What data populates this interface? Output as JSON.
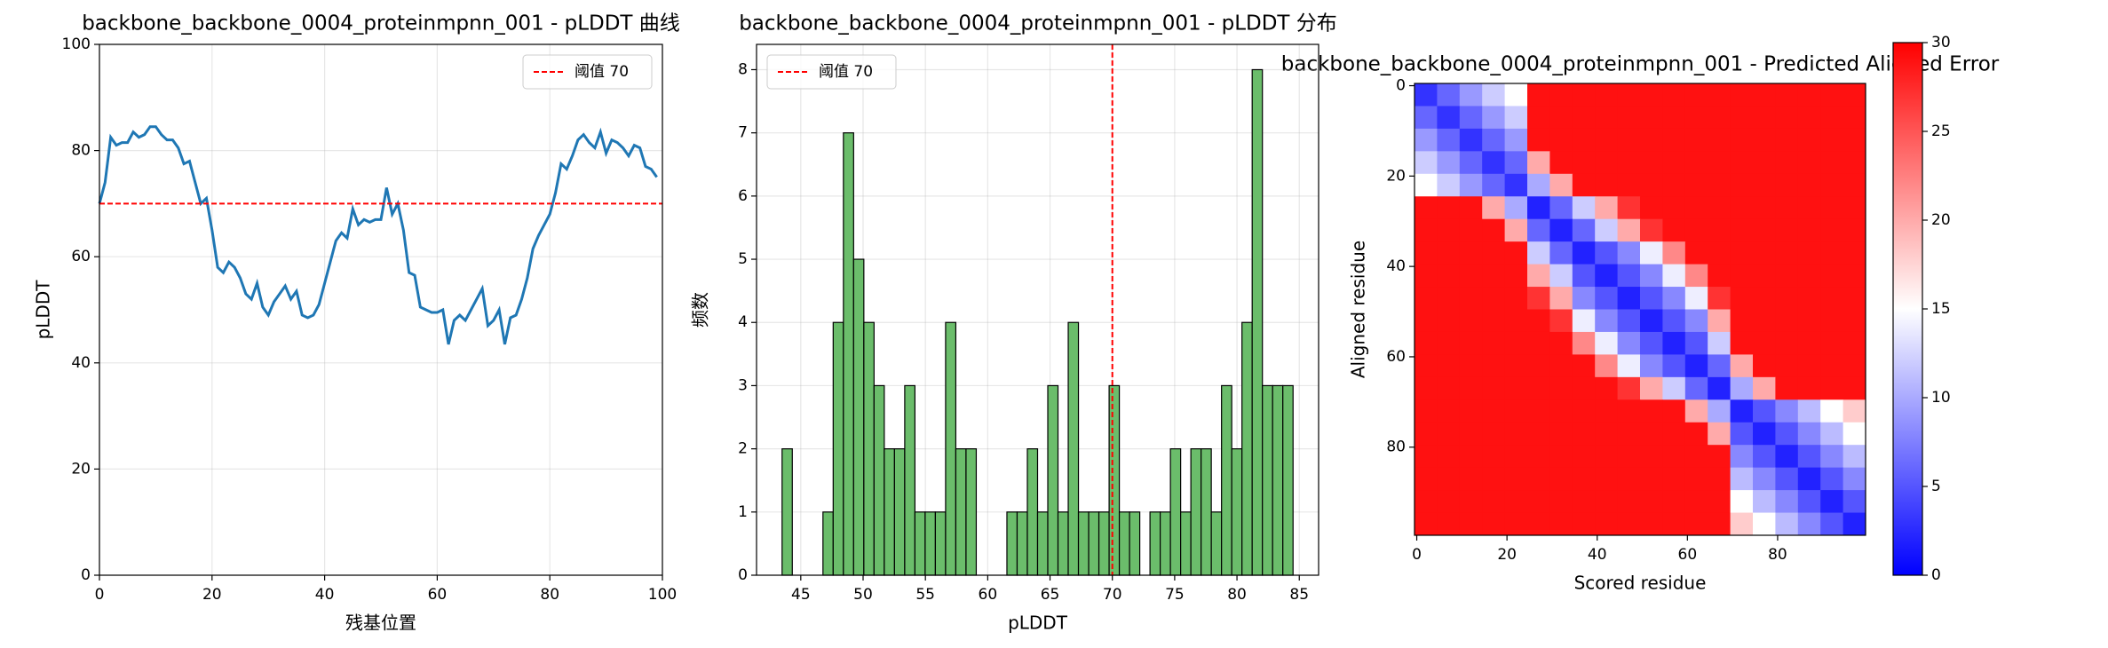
{
  "chart_data": [
    {
      "type": "line",
      "title": "backbone_backbone_0004_proteinmpnn_001 - pLDDT 曲线",
      "xlabel": "残基位置",
      "ylabel": "pLDDT",
      "x": [
        0,
        1,
        2,
        3,
        4,
        5,
        6,
        7,
        8,
        9,
        10,
        11,
        12,
        13,
        14,
        15,
        16,
        17,
        18,
        19,
        20,
        21,
        22,
        23,
        24,
        25,
        26,
        27,
        28,
        29,
        30,
        31,
        32,
        33,
        34,
        35,
        36,
        37,
        38,
        39,
        40,
        41,
        42,
        43,
        44,
        45,
        46,
        47,
        48,
        49,
        50,
        51,
        52,
        53,
        54,
        55,
        56,
        57,
        58,
        59,
        60,
        61,
        62,
        63,
        64,
        65,
        66,
        67,
        68,
        69,
        70,
        71,
        72,
        73,
        74,
        75,
        76,
        77,
        78,
        79,
        80,
        81,
        82,
        83,
        84,
        85,
        86,
        87,
        88,
        89,
        90,
        91,
        92,
        93,
        94,
        95,
        96,
        97,
        98,
        99
      ],
      "series": [
        {
          "name": "pLDDT",
          "color": "#1f77b4",
          "values": [
            70,
            74,
            82.5,
            81,
            81.5,
            81.5,
            83.5,
            82.5,
            83,
            84.5,
            84.5,
            83,
            82,
            82,
            80.5,
            77.5,
            78,
            74,
            70,
            71,
            65,
            58,
            57,
            59,
            58,
            56,
            53,
            52,
            55,
            50.5,
            49,
            51.5,
            53,
            54.5,
            52,
            53.5,
            49,
            48.5,
            49,
            51,
            55,
            59,
            63,
            64.5,
            63.5,
            69,
            66,
            67,
            66.5,
            67,
            67,
            73,
            68,
            70,
            65,
            57,
            56.5,
            50.5,
            50,
            49.5,
            49.5,
            50,
            43.5,
            48,
            49,
            48,
            50,
            52,
            54,
            47,
            48,
            50,
            43.5,
            48.5,
            49,
            52,
            56,
            61.5,
            64,
            66,
            68,
            72,
            77.5,
            76.5,
            79,
            82,
            83,
            81.5,
            80.5,
            83.5,
            79.5,
            82,
            81.5,
            80.5,
            79,
            81,
            80.5,
            77,
            76.5,
            75
          ]
        }
      ],
      "hline": 70,
      "hline_color": "#ff0000",
      "legend_label": "阈值 70",
      "legend": "upper right",
      "xlim": [
        0,
        100
      ],
      "xticks": [
        0,
        20,
        40,
        60,
        80,
        100
      ],
      "ylim": [
        0,
        100
      ],
      "yticks": [
        0,
        20,
        40,
        60,
        80,
        100
      ],
      "grid": true
    },
    {
      "type": "histogram",
      "title": "backbone_backbone_0004_proteinmpnn_001 - pLDDT 分布",
      "xlabel": "pLDDT",
      "ylabel": "频数",
      "bins": [
        43.5,
        44.32,
        45.14,
        45.96,
        46.78,
        47.6,
        48.42,
        49.24,
        50.06,
        50.88,
        51.7,
        52.52,
        53.34,
        54.16,
        54.98,
        55.8,
        56.62,
        57.44,
        58.26,
        59.08,
        59.9,
        60.72,
        61.54,
        62.36,
        63.18,
        64,
        64.82,
        65.64,
        66.46,
        67.28,
        68.1,
        68.92,
        69.74,
        70.56,
        71.38,
        72.2,
        73.02,
        73.84,
        74.66,
        75.48,
        76.3,
        77.12,
        77.94,
        78.76,
        79.58,
        80.4,
        81.22,
        82.04,
        82.86,
        83.68,
        84.5
      ],
      "values": [
        2,
        0,
        0,
        0,
        1,
        4,
        7,
        5,
        4,
        3,
        2,
        2,
        3,
        1,
        1,
        1,
        4,
        2,
        2,
        0,
        0,
        0,
        1,
        1,
        2,
        1,
        3,
        1,
        4,
        1,
        1,
        1,
        3,
        1,
        1,
        0,
        1,
        1,
        2,
        1,
        2,
        2,
        1,
        3,
        2,
        4,
        8,
        3,
        3,
        3
      ],
      "color": "#6bbd6b",
      "edgecolor": "#000000",
      "vline": 70,
      "vline_color": "#ff0000",
      "legend_label": "阈值 70",
      "legend": "upper left",
      "xlim": [
        41.45,
        86.55
      ],
      "xticks": [
        45,
        50,
        55,
        60,
        65,
        70,
        75,
        80,
        85
      ],
      "ylim": [
        0,
        8.4
      ],
      "yticks": [
        0,
        1,
        2,
        3,
        4,
        5,
        6,
        7,
        8
      ],
      "grid": true
    },
    {
      "type": "heatmap",
      "title": "backbone_backbone_0004_proteinmpnn_001 - Predicted Aligned Error",
      "xlabel": "Scored residue",
      "ylabel": "Aligned residue",
      "cmap": "bwr",
      "z": [
        [
          3,
          6,
          9,
          12,
          15,
          29,
          29,
          29,
          29,
          29,
          29,
          29,
          29,
          29,
          29,
          29,
          29,
          29,
          29,
          29
        ],
        [
          6,
          3,
          6,
          9,
          12,
          29,
          29,
          29,
          29,
          29,
          29,
          29,
          29,
          29,
          29,
          29,
          29,
          29,
          29,
          29
        ],
        [
          9,
          6,
          3,
          6,
          9,
          29,
          29,
          29,
          29,
          29,
          29,
          29,
          29,
          29,
          29,
          29,
          29,
          29,
          29,
          29
        ],
        [
          12,
          9,
          6,
          3,
          6,
          20,
          29,
          29,
          29,
          29,
          29,
          29,
          29,
          29,
          29,
          29,
          29,
          29,
          29,
          29
        ],
        [
          15,
          12,
          9,
          6,
          3,
          10,
          20,
          29,
          29,
          29,
          29,
          29,
          29,
          29,
          29,
          29,
          29,
          29,
          29,
          29
        ],
        [
          29,
          29,
          29,
          20,
          10,
          2,
          6,
          12,
          20,
          27,
          29,
          29,
          29,
          29,
          29,
          29,
          29,
          29,
          29,
          29
        ],
        [
          29,
          29,
          29,
          29,
          20,
          6,
          2,
          6,
          12,
          20,
          27,
          29,
          29,
          29,
          29,
          29,
          29,
          29,
          29,
          29
        ],
        [
          29,
          29,
          29,
          29,
          29,
          12,
          6,
          2,
          5,
          8,
          14,
          22,
          29,
          29,
          29,
          29,
          29,
          29,
          29,
          29
        ],
        [
          29,
          29,
          29,
          29,
          29,
          20,
          12,
          5,
          2,
          5,
          8,
          14,
          22,
          29,
          29,
          29,
          29,
          29,
          29,
          29
        ],
        [
          29,
          29,
          29,
          29,
          29,
          27,
          20,
          8,
          5,
          2,
          5,
          8,
          14,
          27,
          29,
          29,
          29,
          29,
          29,
          29
        ],
        [
          29,
          29,
          29,
          29,
          29,
          29,
          27,
          14,
          8,
          5,
          2,
          5,
          8,
          20,
          29,
          29,
          29,
          29,
          29,
          29
        ],
        [
          29,
          29,
          29,
          29,
          29,
          29,
          29,
          22,
          14,
          8,
          5,
          2,
          5,
          12,
          29,
          29,
          29,
          29,
          29,
          29
        ],
        [
          29,
          29,
          29,
          29,
          29,
          29,
          29,
          29,
          22,
          14,
          8,
          5,
          2,
          6,
          20,
          29,
          29,
          29,
          29,
          29
        ],
        [
          29,
          29,
          29,
          29,
          29,
          29,
          29,
          29,
          29,
          27,
          20,
          12,
          6,
          2,
          10,
          20,
          29,
          29,
          29,
          29
        ],
        [
          29,
          29,
          29,
          29,
          29,
          29,
          29,
          29,
          29,
          29,
          29,
          29,
          20,
          10,
          2,
          5,
          8,
          11,
          15,
          18
        ],
        [
          29,
          29,
          29,
          29,
          29,
          29,
          29,
          29,
          29,
          29,
          29,
          29,
          29,
          20,
          5,
          2,
          5,
          8,
          11,
          15
        ],
        [
          29,
          29,
          29,
          29,
          29,
          29,
          29,
          29,
          29,
          29,
          29,
          29,
          29,
          29,
          8,
          5,
          2,
          5,
          8,
          11
        ],
        [
          29,
          29,
          29,
          29,
          29,
          29,
          29,
          29,
          29,
          29,
          29,
          29,
          29,
          29,
          11,
          8,
          5,
          2,
          5,
          8
        ],
        [
          29,
          29,
          29,
          29,
          29,
          29,
          29,
          29,
          29,
          29,
          29,
          29,
          29,
          29,
          15,
          11,
          8,
          5,
          2,
          5
        ],
        [
          29,
          29,
          29,
          29,
          29,
          29,
          29,
          29,
          29,
          29,
          29,
          29,
          29,
          29,
          18,
          15,
          11,
          8,
          5,
          2
        ]
      ],
      "xlim": [
        -0.5,
        99.5
      ],
      "xticks": [
        0,
        20,
        40,
        60,
        80
      ],
      "ylim": [
        99.5,
        -0.5
      ],
      "yticks": [
        0,
        20,
        40,
        60,
        80
      ],
      "clim": [
        0,
        30
      ],
      "cticks": [
        0,
        5,
        10,
        15,
        20,
        25,
        30
      ]
    }
  ]
}
